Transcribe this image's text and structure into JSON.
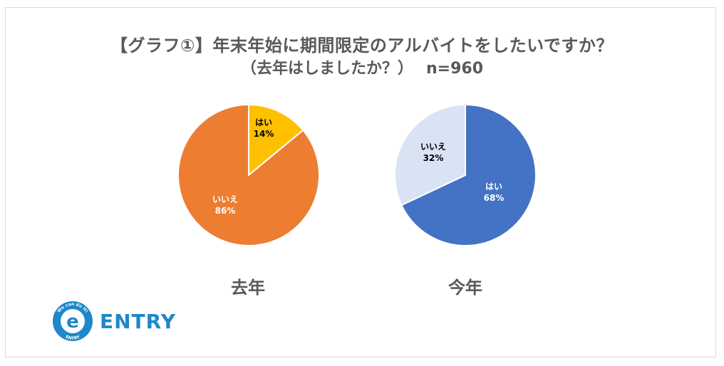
{
  "title": {
    "line1": "【グラフ①】年末年始に期間限定のアルバイトをしたいですか？",
    "line2": "（去年はしましたか？）",
    "n": "n=960"
  },
  "chart_data": [
    {
      "type": "pie",
      "caption": "去年",
      "slices": [
        {
          "label": "はい",
          "value": 14,
          "value_label": "14%",
          "color": "#ffc000",
          "text_color": "#000000"
        },
        {
          "label": "いいえ",
          "value": 86,
          "value_label": "86%",
          "color": "#ed7d31",
          "text_color": "#ffffff"
        }
      ]
    },
    {
      "type": "pie",
      "caption": "今年",
      "slices": [
        {
          "label": "はい",
          "value": 68,
          "value_label": "68%",
          "color": "#4472c4",
          "text_color": "#ffffff"
        },
        {
          "label": "いいえ",
          "value": 32,
          "value_label": "32%",
          "color": "#dae3f3",
          "text_color": "#000000"
        }
      ]
    }
  ],
  "logo": {
    "brand": "ENTRY",
    "badge_letter": "e",
    "badge_top_text": "We can do it!",
    "badge_bottom_text": "ENTRY",
    "color": "#1e88c8"
  }
}
